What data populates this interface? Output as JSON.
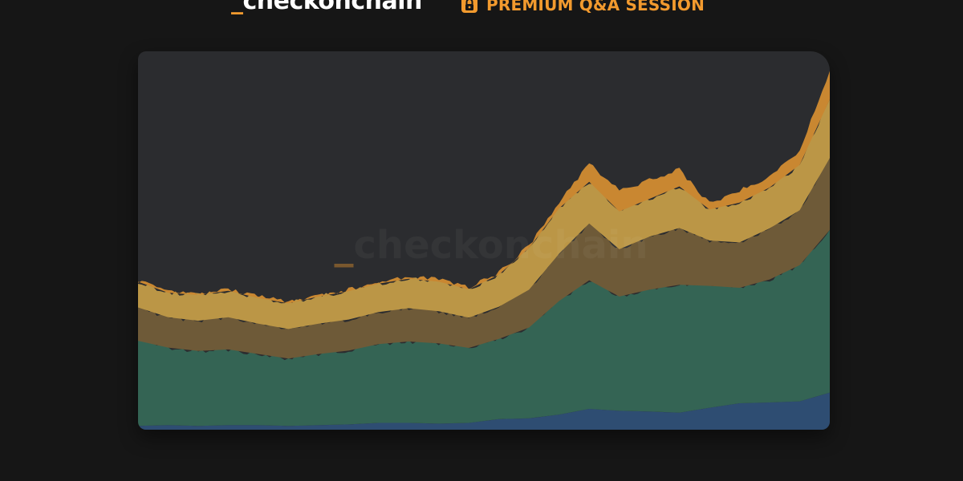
{
  "header": {
    "brand_prefix": "_",
    "brand_name": "checkonchain",
    "session_label": "PREMIUM Q&A SESSION",
    "lock_icon": "lock-icon"
  },
  "watermark": {
    "prefix": "_",
    "text": "checkonchain"
  },
  "colors": {
    "background": "#161616",
    "card": "#2b2c2f",
    "accent": "#f29a2e",
    "series": [
      "#2e4d72",
      "#346454",
      "#6e5a38",
      "#bb9646",
      "#c98731"
    ]
  },
  "chart_data": {
    "type": "area",
    "stacked": true,
    "grid": false,
    "legend": "none",
    "ylim": [
      0,
      1
    ],
    "series": [
      {
        "values": [
          0.01,
          0.012,
          0.01,
          0.012,
          0.012,
          0.01,
          0.012,
          0.014,
          0.018,
          0.018,
          0.016,
          0.018,
          0.028,
          0.03,
          0.04,
          0.055,
          0.05,
          0.048,
          0.045,
          0.058,
          0.07,
          0.072,
          0.075,
          0.098
        ]
      },
      {
        "values": [
          0.225,
          0.205,
          0.198,
          0.2,
          0.188,
          0.178,
          0.188,
          0.195,
          0.208,
          0.215,
          0.212,
          0.198,
          0.212,
          0.24,
          0.3,
          0.34,
          0.302,
          0.322,
          0.338,
          0.322,
          0.305,
          0.325,
          0.36,
          0.43
        ]
      },
      {
        "values": [
          0.088,
          0.08,
          0.08,
          0.085,
          0.08,
          0.078,
          0.08,
          0.082,
          0.085,
          0.088,
          0.085,
          0.08,
          0.085,
          0.1,
          0.125,
          0.15,
          0.125,
          0.14,
          0.15,
          0.12,
          0.12,
          0.135,
          0.145,
          0.19
        ]
      },
      {
        "values": [
          0.068,
          0.065,
          0.068,
          0.07,
          0.068,
          0.068,
          0.072,
          0.075,
          0.075,
          0.078,
          0.078,
          0.075,
          0.085,
          0.11,
          0.12,
          0.11,
          0.1,
          0.1,
          0.11,
          0.082,
          0.105,
          0.108,
          0.12,
          0.155
        ]
      },
      {
        "values": [
          0.002,
          0.003,
          0.004,
          0.003,
          0.004,
          0.003,
          0.002,
          0.004,
          0.003,
          0.005,
          0.006,
          0.004,
          0.004,
          0.008,
          0.014,
          0.05,
          0.055,
          0.05,
          0.044,
          0.016,
          0.032,
          0.03,
          0.038,
          0.075
        ]
      }
    ]
  }
}
